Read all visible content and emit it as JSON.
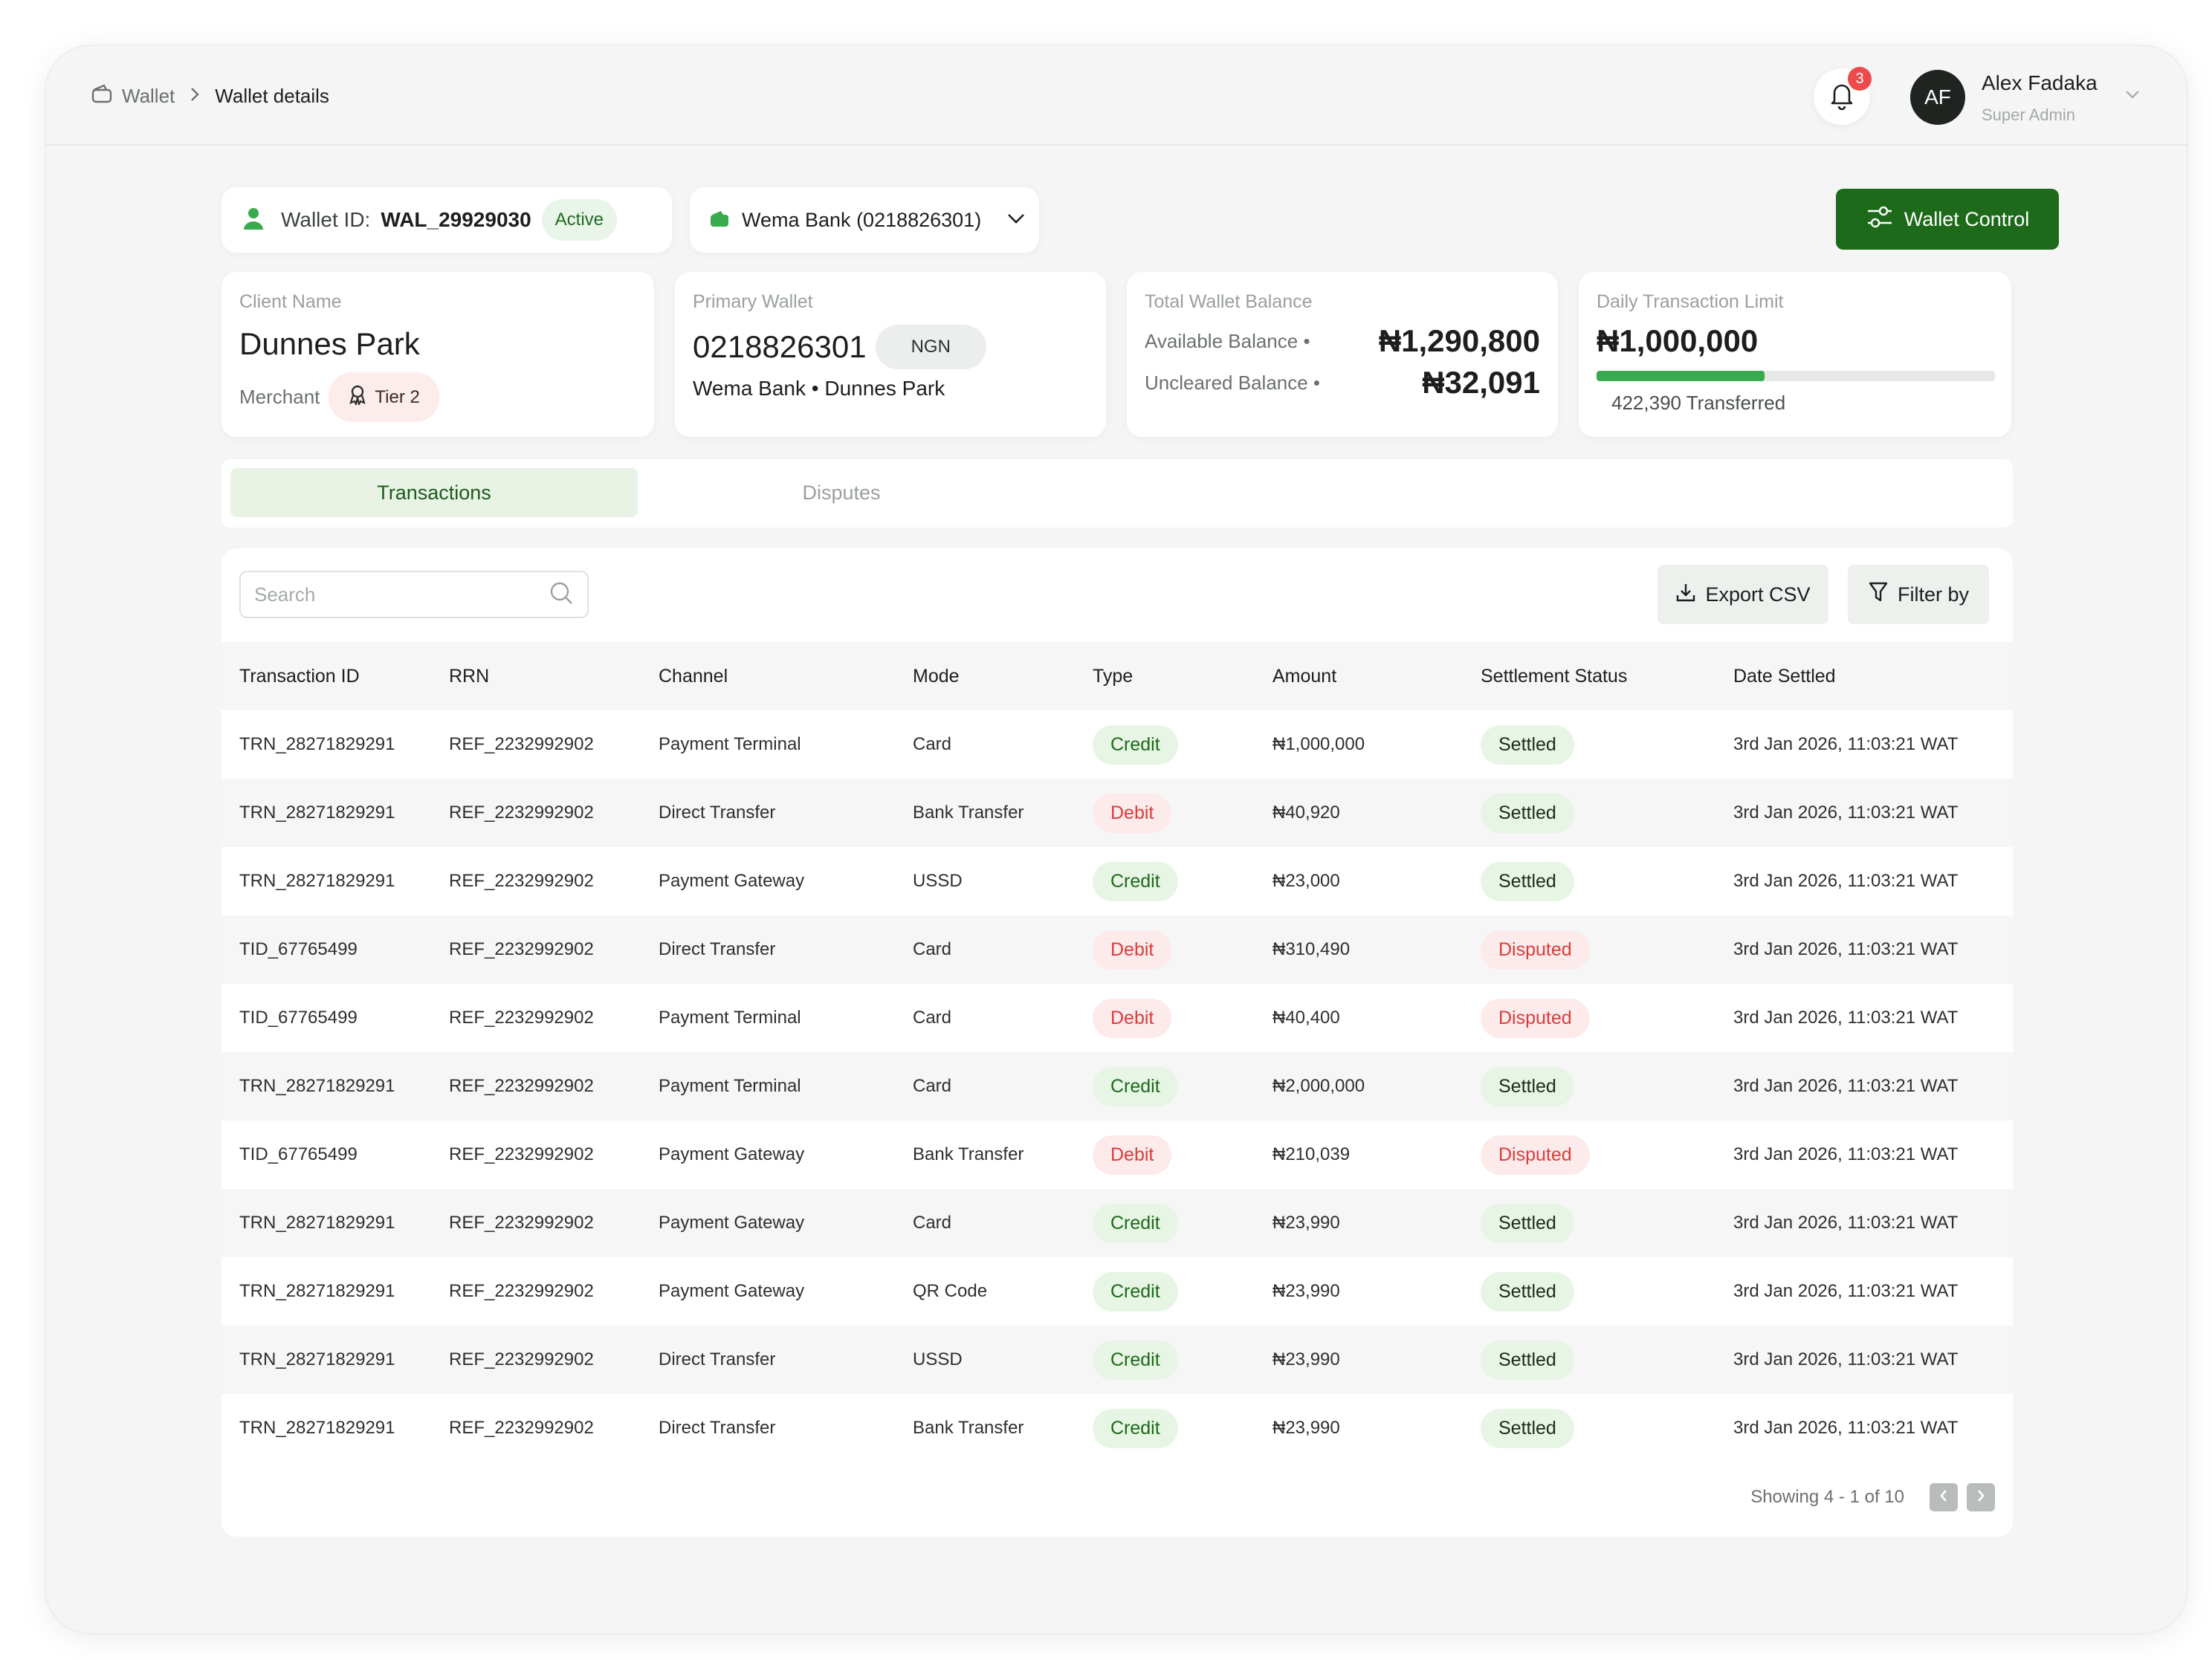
{
  "breadcrumb": {
    "root": "Wallet",
    "current": "Wallet details"
  },
  "notifications": {
    "count": "3"
  },
  "user": {
    "initials": "AF",
    "name": "Alex Fadaka",
    "role": "Super Admin"
  },
  "wallet": {
    "id_label": "Wallet ID:",
    "id_value": "WAL_29929030",
    "status": "Active",
    "bank_select": "Wema Bank (0218826301)",
    "control_label": "Wallet Control"
  },
  "client": {
    "label": "Client Name",
    "name": "Dunnes Park",
    "type": "Merchant",
    "tier": "Tier 2"
  },
  "primary_wallet": {
    "label": "Primary Wallet",
    "account": "0218826301",
    "currency": "NGN",
    "bank_line": "Wema Bank • Dunnes Park"
  },
  "balance": {
    "label": "Total Wallet  Balance",
    "available_label": "Available Balance •",
    "available_value": "₦1,290,800",
    "uncleared_label": "Uncleared Balance •",
    "uncleared_value": "₦32,091"
  },
  "limit": {
    "label": "Daily Transaction Limit",
    "value": "₦1,000,000",
    "transferred": "422,390 Transferred",
    "used_fraction": 0.42239
  },
  "tabs": [
    {
      "label": "Transactions",
      "active": true
    },
    {
      "label": "Disputes",
      "active": false
    }
  ],
  "toolbar": {
    "search_placeholder": "Search",
    "export_label": "Export CSV",
    "filter_label": "Filter by"
  },
  "table": {
    "columns": [
      "Transaction ID",
      "RRN",
      "Channel",
      "Mode",
      "Type",
      "Amount",
      "Settlement Status",
      "Date Settled"
    ],
    "rows": [
      [
        "TRN_28271829291",
        "REF_2232992902",
        "Payment Terminal",
        "Card",
        "Credit",
        "₦1,000,000",
        "Settled",
        "3rd Jan 2026, 11:03:21 WAT"
      ],
      [
        "TRN_28271829291",
        "REF_2232992902",
        "Direct Transfer",
        "Bank Transfer",
        "Debit",
        "₦40,920",
        "Settled",
        "3rd Jan 2026, 11:03:21 WAT"
      ],
      [
        "TRN_28271829291",
        "REF_2232992902",
        "Payment Gateway",
        "USSD",
        "Credit",
        "₦23,000",
        "Settled",
        "3rd Jan 2026, 11:03:21 WAT"
      ],
      [
        "TID_67765499",
        "REF_2232992902",
        "Direct Transfer",
        "Card",
        "Debit",
        "₦310,490",
        "Disputed",
        "3rd Jan 2026, 11:03:21 WAT"
      ],
      [
        "TID_67765499",
        "REF_2232992902",
        "Payment Terminal",
        "Card",
        "Debit",
        "₦40,400",
        "Disputed",
        "3rd Jan 2026, 11:03:21 WAT"
      ],
      [
        "TRN_28271829291",
        "REF_2232992902",
        "Payment Terminal",
        "Card",
        "Credit",
        "₦2,000,000",
        "Settled",
        "3rd Jan 2026, 11:03:21 WAT"
      ],
      [
        "TID_67765499",
        "REF_2232992902",
        "Payment Gateway",
        "Bank Transfer",
        "Debit",
        "₦210,039",
        "Disputed",
        "3rd Jan 2026, 11:03:21 WAT"
      ],
      [
        "TRN_28271829291",
        "REF_2232992902",
        "Payment Gateway",
        "Card",
        "Credit",
        "₦23,990",
        "Settled",
        "3rd Jan 2026, 11:03:21 WAT"
      ],
      [
        "TRN_28271829291",
        "REF_2232992902",
        "Payment Gateway",
        "QR Code",
        "Credit",
        "₦23,990",
        "Settled",
        "3rd Jan 2026, 11:03:21 WAT"
      ],
      [
        "TRN_28271829291",
        "REF_2232992902",
        "Direct Transfer",
        "USSD",
        "Credit",
        "₦23,990",
        "Settled",
        "3rd Jan 2026, 11:03:21 WAT"
      ],
      [
        "TRN_28271829291",
        "REF_2232992902",
        "Direct Transfer",
        "Bank Transfer",
        "Credit",
        "₦23,990",
        "Settled",
        "3rd Jan 2026, 11:03:21 WAT"
      ]
    ]
  },
  "pagination": {
    "text": "Showing 4 - 1 of 10"
  },
  "colors": {
    "brand_green": "#1d6a1a",
    "progress_green": "#3aaa4e",
    "debit_red": "#d93d3d",
    "badge_red": "#ec4b4b"
  },
  "icons": [
    "wallet-icon",
    "chevron-right-icon",
    "bell-icon",
    "chevron-down-icon",
    "user-icon",
    "bank-icon",
    "sliders-icon",
    "badge-icon",
    "search-icon",
    "download-icon",
    "filter-icon",
    "chevron-left-icon"
  ]
}
